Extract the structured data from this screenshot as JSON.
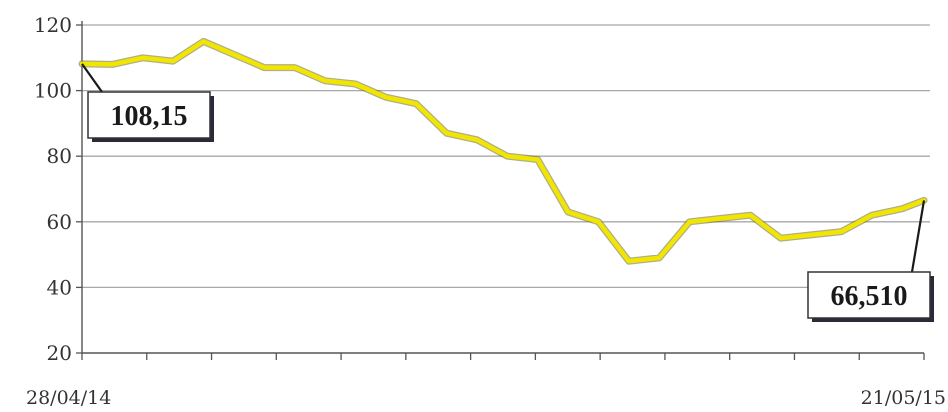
{
  "chart_data": {
    "type": "line",
    "title": "",
    "xlabel": "",
    "ylabel": "",
    "x_start_label": "28/04/14",
    "x_end_label": "21/05/15",
    "ylim": [
      20,
      120
    ],
    "yticks": [
      120,
      100,
      80,
      60,
      40,
      20
    ],
    "grid": true,
    "series": [
      {
        "color": "#f2e600",
        "x": [
          "2014-04-28",
          "2014-05-12",
          "2014-05-26",
          "2014-06-09",
          "2014-06-23",
          "2014-07-07",
          "2014-07-21",
          "2014-08-04",
          "2014-08-18",
          "2014-09-01",
          "2014-09-15",
          "2014-09-29",
          "2014-10-13",
          "2014-10-27",
          "2014-11-10",
          "2014-11-24",
          "2014-12-08",
          "2014-12-22",
          "2015-01-05",
          "2015-01-19",
          "2015-02-02",
          "2015-02-16",
          "2015-03-02",
          "2015-03-16",
          "2015-03-30",
          "2015-04-13",
          "2015-04-27",
          "2015-05-11",
          "2015-05-21"
        ],
        "values": [
          108.15,
          108,
          110,
          109,
          115,
          111,
          107,
          107,
          103,
          102,
          98,
          96,
          87,
          85,
          80,
          79,
          63,
          60,
          48,
          49,
          60,
          61,
          62,
          55,
          56,
          57,
          62,
          64,
          66.51
        ]
      }
    ],
    "annotations": [
      {
        "text": "108,15",
        "x": "2014-04-28",
        "y": 108.15
      },
      {
        "text": "66,510",
        "x": "2015-05-21",
        "y": 66.51
      }
    ]
  }
}
